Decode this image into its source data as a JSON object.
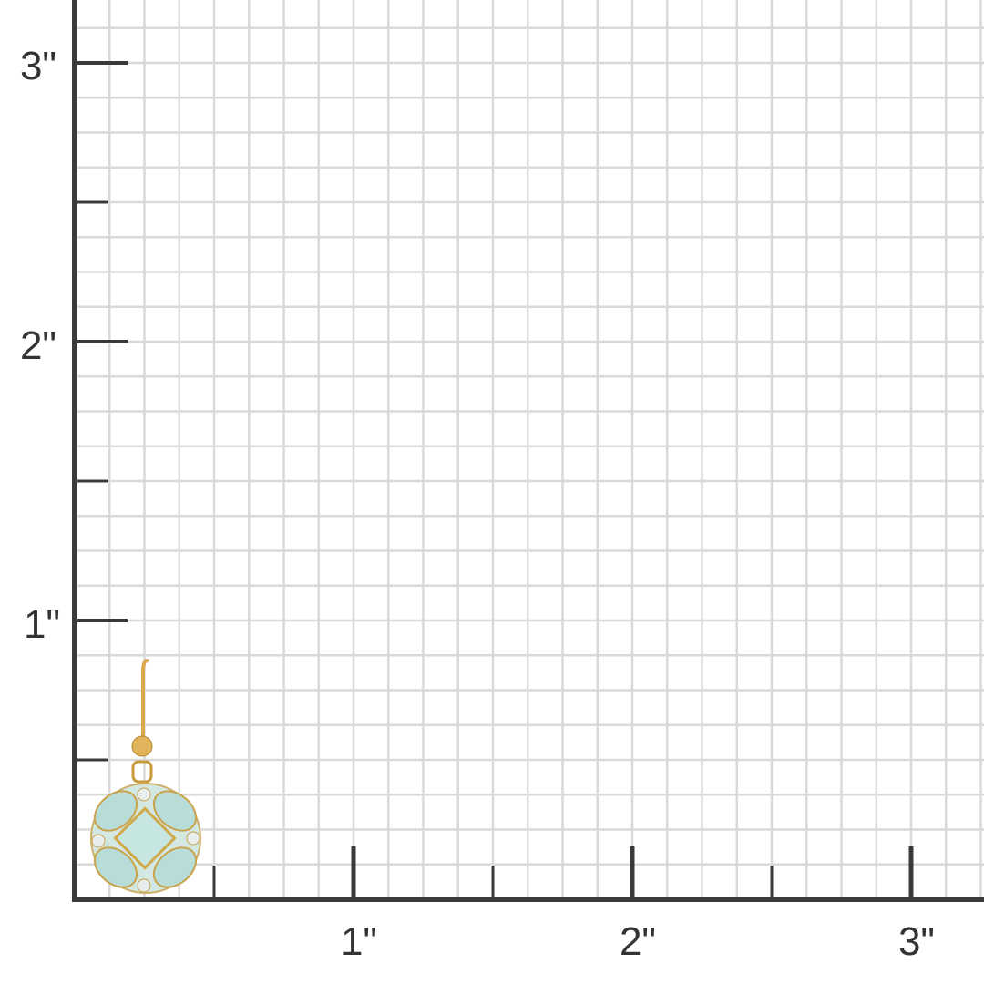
{
  "image": {
    "subject": "earring-on-measurement-grid",
    "unit_labels": {
      "y_axis": [
        "1\"",
        "2\"",
        "3\""
      ],
      "x_axis": [
        "1\"",
        "2\"",
        "3\""
      ]
    },
    "colors": {
      "background": "#ffffff",
      "grid": "#d9d9d9",
      "axis": "#3a3a3a",
      "gold": "#d9a84a",
      "stone": "#bfe0dc"
    }
  }
}
